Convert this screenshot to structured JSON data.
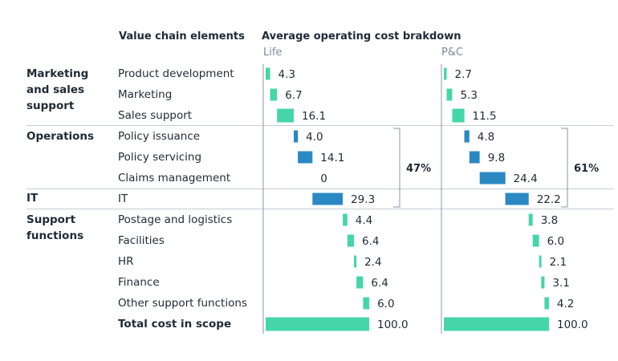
{
  "headers": {
    "elements": "Value chain elements",
    "chart": "Average operating cost brakdown",
    "life": "Life",
    "pc": "P&C"
  },
  "groups": [
    {
      "label": "Marketing and sales support"
    },
    {
      "label": "Operations"
    },
    {
      "label": "IT"
    },
    {
      "label": "Support functions"
    }
  ],
  "colors": {
    "teal": "#44d6a8",
    "blue": "#2a88c3",
    "axis": "#8a96a3",
    "separator": "#c6ced6"
  },
  "chart_data": {
    "type": "bar",
    "subtype": "waterfall",
    "title": "Average operating cost brakdown",
    "categories": [
      "Product development",
      "Marketing",
      "Sales support",
      "Policy issuance",
      "Policy servicing",
      "Claims management",
      "IT",
      "Postage and logistics",
      "Facilities",
      "HR",
      "Finance",
      "Other support functions",
      "Total cost in scope"
    ],
    "category_groups": [
      "Marketing and sales support",
      "Marketing and sales support",
      "Marketing and sales support",
      "Operations",
      "Operations",
      "Operations",
      "IT",
      "Support functions",
      "Support functions",
      "Support functions",
      "Support functions",
      "Support functions",
      "Total"
    ],
    "series": [
      {
        "name": "Life",
        "values": [
          4.3,
          6.7,
          16.1,
          4.0,
          14.1,
          0,
          29.3,
          4.4,
          6.4,
          2.4,
          6.4,
          6.0,
          100.0
        ],
        "labels": [
          "4.3",
          "6.7",
          "16.1",
          "4.0",
          "14.1",
          "0",
          "29.3",
          "4.4",
          "6.4",
          "2.4",
          "6.4",
          "6.0",
          "100.0"
        ],
        "bracket": {
          "label": "47%",
          "from": "Policy issuance",
          "to": "IT"
        }
      },
      {
        "name": "P&C",
        "values": [
          2.7,
          5.3,
          11.5,
          4.8,
          9.8,
          24.4,
          22.2,
          3.8,
          6.0,
          2.1,
          3.1,
          4.2,
          100.0
        ],
        "labels": [
          "2.7",
          "5.3",
          "11.5",
          "4.8",
          "9.8",
          "24.4",
          "22.2",
          "3.8",
          "6.0",
          "2.1",
          "3.1",
          "4.2",
          "100.0"
        ],
        "bracket": {
          "label": "61%",
          "from": "Policy issuance",
          "to": "IT"
        }
      }
    ],
    "bar_colors": [
      "teal",
      "teal",
      "teal",
      "blue",
      "blue",
      "blue",
      "blue",
      "teal",
      "teal",
      "teal",
      "teal",
      "teal",
      "teal"
    ],
    "xlim": [
      0,
      100
    ],
    "grid": false,
    "legend": "none"
  }
}
